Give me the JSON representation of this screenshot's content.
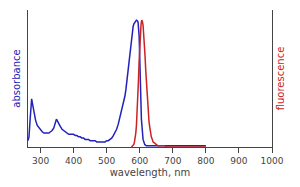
{
  "chart_data": {
    "type": "line",
    "xlabel": "wavelength, nm",
    "ylabel": "absorbance",
    "y2label": "fluorescence",
    "xlim": [
      262,
      1000
    ],
    "xticks": [
      300,
      400,
      500,
      600,
      700,
      800,
      900,
      1000
    ],
    "ylim": [
      0,
      1.08
    ],
    "y2lim": [
      0,
      1.08
    ],
    "tick_labels": "x",
    "grid": false,
    "series": [
      {
        "color": "#2222bb",
        "x": [
          262,
          265,
          268,
          270,
          273,
          275,
          278,
          280,
          285,
          290,
          295,
          300,
          305,
          310,
          315,
          320,
          325,
          330,
          335,
          340,
          345,
          348,
          350,
          355,
          360,
          365,
          370,
          375,
          380,
          385,
          390,
          395,
          400,
          405,
          410,
          415,
          420,
          425,
          430,
          435,
          440,
          445,
          450,
          455,
          460,
          465,
          470,
          475,
          480,
          485,
          490,
          495,
          500,
          505,
          510,
          515,
          520,
          525,
          530,
          535,
          538,
          540,
          542,
          545,
          548,
          550,
          553,
          555,
          558,
          560,
          563,
          565,
          567,
          570,
          572,
          574,
          576,
          578,
          580,
          582,
          584,
          585,
          586,
          587,
          588,
          589,
          590,
          591,
          592,
          593,
          594,
          595,
          596,
          597,
          598,
          599,
          600,
          602,
          605,
          610,
          615,
          620,
          625,
          630,
          640,
          650,
          660,
          680,
          700,
          750,
          800
        ],
        "values": [
          0.05,
          0.08,
          0.2,
          0.33,
          0.38,
          0.35,
          0.3,
          0.26,
          0.21,
          0.17,
          0.15,
          0.13,
          0.12,
          0.11,
          0.11,
          0.11,
          0.11,
          0.12,
          0.13,
          0.15,
          0.2,
          0.22,
          0.21,
          0.18,
          0.16,
          0.14,
          0.13,
          0.12,
          0.11,
          0.1,
          0.1,
          0.1,
          0.1,
          0.09,
          0.09,
          0.08,
          0.08,
          0.07,
          0.07,
          0.06,
          0.06,
          0.06,
          0.05,
          0.05,
          0.05,
          0.05,
          0.04,
          0.04,
          0.04,
          0.04,
          0.04,
          0.04,
          0.05,
          0.05,
          0.06,
          0.07,
          0.09,
          0.11,
          0.14,
          0.18,
          0.21,
          0.23,
          0.25,
          0.28,
          0.31,
          0.33,
          0.37,
          0.4,
          0.45,
          0.5,
          0.57,
          0.62,
          0.67,
          0.72,
          0.78,
          0.84,
          0.89,
          0.93,
          0.95,
          0.97,
          0.98,
          0.985,
          0.99,
          0.995,
          0.998,
          0.999,
          1.0,
          0.999,
          0.998,
          0.995,
          0.99,
          0.98,
          0.96,
          0.93,
          0.88,
          0.8,
          0.65,
          0.42,
          0.22,
          0.06,
          0.02,
          0.01,
          0.01,
          0.01,
          0.01,
          0.01,
          0.01,
          0.01,
          0.01,
          0.01,
          0.01
        ]
      },
      {
        "color": "#cc2222",
        "axis": "y2",
        "x": [
          575,
          578,
          580,
          582,
          584,
          586,
          588,
          590,
          592,
          594,
          596,
          598,
          600,
          602,
          604,
          606,
          608,
          610,
          612,
          614,
          616,
          618,
          620,
          622,
          624,
          626,
          628,
          630,
          632,
          635,
          638,
          640,
          645,
          650,
          655,
          660,
          665,
          670,
          675,
          680,
          690,
          700,
          720,
          750,
          800
        ],
        "values": [
          0.0,
          0.01,
          0.01,
          0.02,
          0.04,
          0.07,
          0.11,
          0.17,
          0.26,
          0.38,
          0.52,
          0.67,
          0.8,
          0.9,
          0.97,
          1.0,
          0.99,
          0.96,
          0.9,
          0.82,
          0.72,
          0.61,
          0.51,
          0.41,
          0.33,
          0.26,
          0.2,
          0.16,
          0.12,
          0.08,
          0.06,
          0.04,
          0.03,
          0.02,
          0.01,
          0.01,
          0.01,
          0.01,
          0.01,
          0.0,
          0.0,
          0.0,
          0.0,
          0.0,
          0.0
        ]
      }
    ]
  }
}
